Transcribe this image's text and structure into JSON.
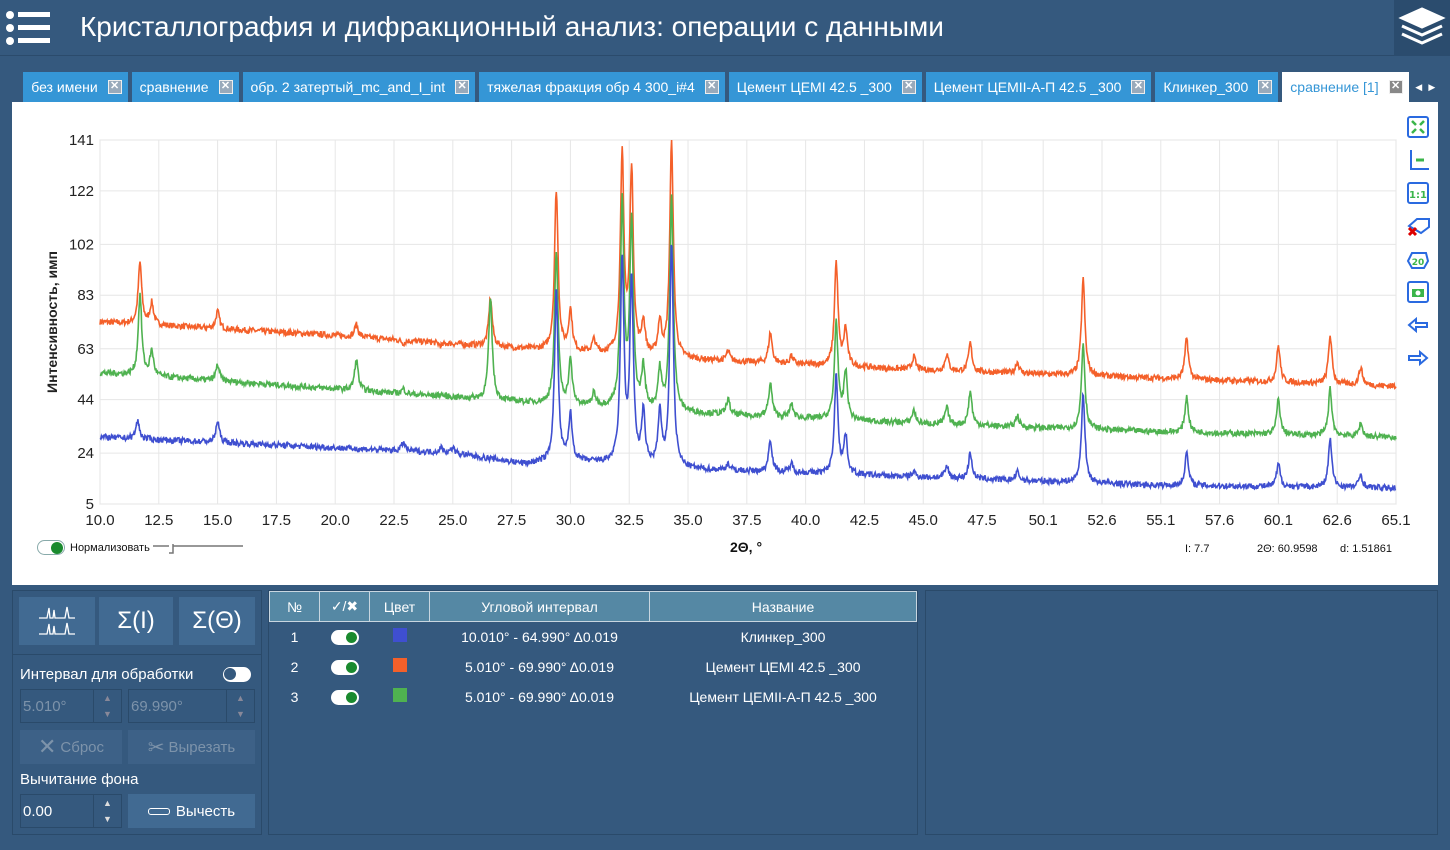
{
  "header": {
    "title": "Кристаллография и дифракционный анализ: операции с данными",
    "menu_icon": "hamburger-icon",
    "layers_icon": "layers-icon"
  },
  "tabs": [
    {
      "label": "без имени",
      "active": false
    },
    {
      "label": "сравнение",
      "active": false
    },
    {
      "label": "обр. 2 затертый_mc_and_I_int",
      "active": false
    },
    {
      "label": "тяжелая фракция обр 4 300_i#4",
      "active": false
    },
    {
      "label": "Цемент ЦЕМI 42.5 _300",
      "active": false
    },
    {
      "label": "Цемент ЦЕМII-А-П  42.5 _300",
      "active": false
    },
    {
      "label": "Клинкер_300",
      "active": false
    },
    {
      "label": "сравнение [1]",
      "active": true
    }
  ],
  "chart_toolbar": [
    "fit-all-icon",
    "axes-scale-icon",
    "ratio-1-1-icon",
    "remove-labels-icon",
    "label-2theta-icon",
    "camera-icon",
    "arrow-left-icon",
    "arrow-right-icon"
  ],
  "chart_controls": {
    "normalize_label": "Нормализовать",
    "normalize_on": true,
    "readout": {
      "intensity": "I: 7.7",
      "two_theta": "2Θ: 60.9598",
      "d": "d: 1.51861"
    }
  },
  "chart_data": {
    "type": "line",
    "xlabel": "2Θ, °",
    "ylabel": "Интенсивность, имп",
    "xlim": [
      10.0,
      65.1
    ],
    "ylim": [
      5,
      141
    ],
    "xticks": [
      "10.0",
      "12.5",
      "15.0",
      "17.5",
      "20.0",
      "22.5",
      "25.0",
      "27.5",
      "30.0",
      "32.5",
      "35.0",
      "37.5",
      "40.0",
      "42.5",
      "45.0",
      "47.5",
      "50.1",
      "52.6",
      "55.1",
      "57.6",
      "60.1",
      "62.6",
      "65.1"
    ],
    "yticks": [
      "5",
      "24",
      "44",
      "63",
      "83",
      "102",
      "122",
      "141"
    ],
    "grid": true,
    "series": [
      {
        "name": "Цемент ЦЕМI 42.5 _300",
        "color": "#f4602a",
        "baseline": [
          [
            10,
            73
          ],
          [
            20,
            68
          ],
          [
            28,
            63
          ],
          [
            35,
            59
          ],
          [
            45,
            55
          ],
          [
            55,
            52
          ],
          [
            65.1,
            49
          ]
        ],
        "peaks": [
          [
            11.7,
            95
          ],
          [
            12.2,
            80
          ],
          [
            15.0,
            77
          ],
          [
            20.9,
            72
          ],
          [
            22.9,
            65
          ],
          [
            24.5,
            64
          ],
          [
            26.6,
            82
          ],
          [
            29.4,
            122
          ],
          [
            30.0,
            77
          ],
          [
            31.0,
            66
          ],
          [
            32.2,
            134
          ],
          [
            32.6,
            129
          ],
          [
            33.1,
            72
          ],
          [
            33.8,
            72
          ],
          [
            34.3,
            141
          ],
          [
            36.7,
            62
          ],
          [
            38.5,
            69
          ],
          [
            39.4,
            60
          ],
          [
            41.3,
            95
          ],
          [
            41.7,
            70
          ],
          [
            44.6,
            60
          ],
          [
            46.0,
            61
          ],
          [
            47.0,
            65
          ],
          [
            49.0,
            58
          ],
          [
            51.8,
            89
          ],
          [
            56.2,
            67
          ],
          [
            60.1,
            64
          ],
          [
            62.3,
            68
          ],
          [
            63.6,
            56
          ]
        ]
      },
      {
        "name": "Цемент ЦЕМII-А-П  42.5 _300",
        "color": "#4fb250",
        "baseline": [
          [
            10,
            54
          ],
          [
            20,
            48
          ],
          [
            28,
            43
          ],
          [
            35,
            39
          ],
          [
            45,
            35
          ],
          [
            55,
            32
          ],
          [
            65.1,
            30
          ]
        ],
        "peaks": [
          [
            11.7,
            83
          ],
          [
            12.2,
            62
          ],
          [
            15.0,
            57
          ],
          [
            20.9,
            59
          ],
          [
            22.9,
            48
          ],
          [
            24.5,
            46
          ],
          [
            26.6,
            82
          ],
          [
            29.4,
            99
          ],
          [
            30.0,
            58
          ],
          [
            31.0,
            46
          ],
          [
            32.2,
            117
          ],
          [
            32.6,
            109
          ],
          [
            33.1,
            55
          ],
          [
            33.8,
            54
          ],
          [
            34.3,
            120
          ],
          [
            36.7,
            44
          ],
          [
            38.5,
            50
          ],
          [
            39.4,
            42
          ],
          [
            41.3,
            73
          ],
          [
            41.7,
            54
          ],
          [
            44.6,
            40
          ],
          [
            46.0,
            41
          ],
          [
            47.0,
            47
          ],
          [
            49.0,
            38
          ],
          [
            51.8,
            65
          ],
          [
            56.2,
            45
          ],
          [
            60.1,
            44
          ],
          [
            62.3,
            48
          ],
          [
            63.6,
            35
          ]
        ]
      },
      {
        "name": "Клинкер_300",
        "color": "#3f4fd0",
        "baseline": [
          [
            10,
            30
          ],
          [
            20,
            26
          ],
          [
            25,
            24
          ],
          [
            28,
            20
          ],
          [
            30,
            21
          ],
          [
            35,
            18
          ],
          [
            45,
            15
          ],
          [
            55,
            12
          ],
          [
            65.1,
            11
          ]
        ],
        "peaks": [
          [
            11.6,
            36
          ],
          [
            15.0,
            36
          ],
          [
            22.9,
            28
          ],
          [
            24.5,
            26
          ],
          [
            25.0,
            26
          ],
          [
            29.4,
            85
          ],
          [
            30.0,
            38
          ],
          [
            32.2,
            95
          ],
          [
            32.6,
            87
          ],
          [
            33.1,
            38
          ],
          [
            33.8,
            38
          ],
          [
            34.3,
            102
          ],
          [
            36.7,
            20
          ],
          [
            38.5,
            29
          ],
          [
            39.4,
            20
          ],
          [
            41.3,
            53
          ],
          [
            41.7,
            30
          ],
          [
            44.6,
            17
          ],
          [
            46.0,
            19
          ],
          [
            47.0,
            24
          ],
          [
            49.0,
            17
          ],
          [
            51.8,
            46
          ],
          [
            56.2,
            24
          ],
          [
            60.1,
            20
          ],
          [
            62.3,
            29
          ],
          [
            63.6,
            16
          ]
        ]
      }
    ]
  },
  "left_panel": {
    "mode_buttons": [
      "peaks-view-icon",
      "Σ(I)",
      "Σ(Θ)"
    ],
    "interval_label": "Интервал для обработки",
    "interval_on": false,
    "interval_from": "5.010°",
    "interval_to": "69.990°",
    "reset_label": "Сброс",
    "cut_label": "Вырезать",
    "bg_label": "Вычитание фона",
    "bg_value": "0.00",
    "subtract_label": "Вычесть"
  },
  "table": {
    "headers": [
      "№",
      "✓/✖",
      "Цвет",
      "Угловой интервал",
      "Название"
    ],
    "rows": [
      {
        "n": "1",
        "on": true,
        "color": "#3f4fd0",
        "interval": "10.010° - 64.990° Δ0.019",
        "name": "Клинкер_300"
      },
      {
        "n": "2",
        "on": true,
        "color": "#f4602a",
        "interval": "5.010° - 69.990° Δ0.019",
        "name": "Цемент ЦЕМI 42.5 _300"
      },
      {
        "n": "3",
        "on": true,
        "color": "#4fb250",
        "interval": "5.010° - 69.990° Δ0.019",
        "name": "Цемент ЦЕМII-А-П  42.5 _300"
      }
    ]
  }
}
